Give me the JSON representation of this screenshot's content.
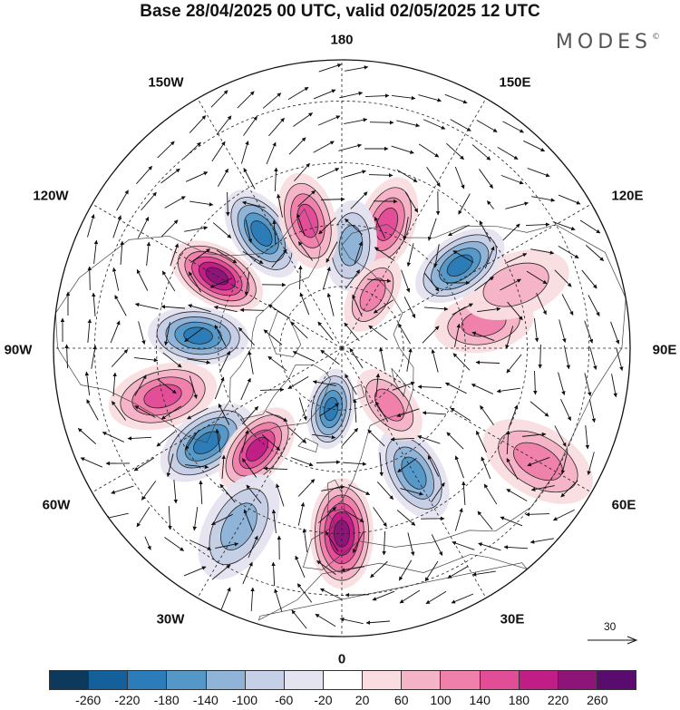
{
  "title": "Base 28/04/2025 00 UTC, valid 02/05/2025 12 UTC",
  "brand": "MODES",
  "brand_mark": "©",
  "longitude_labels": {
    "top": "180",
    "top_left": "150W",
    "top_right": "150E",
    "upper_left": "120W",
    "upper_right": "120E",
    "left": "90W",
    "right": "90E",
    "lower_left": "60W",
    "lower_right": "60E",
    "bottom_left": "30W",
    "bottom_right": "30E",
    "bottom": "0"
  },
  "reference_vector": {
    "label": "30"
  },
  "colorbar": {
    "tick_labels": [
      "-260",
      "-220",
      "-180",
      "-140",
      "-100",
      "-60",
      "-20",
      "20",
      "60",
      "100",
      "140",
      "180",
      "220",
      "260"
    ],
    "colors": [
      "#0d3a5c",
      "#13609b",
      "#2b7cb8",
      "#5598c7",
      "#8fb4d8",
      "#c5cfe5",
      "#e4e3f0",
      "#ffffff",
      "#f9dde1",
      "#f5b3c7",
      "#ef80aa",
      "#e24d97",
      "#c01d86",
      "#8d1578",
      "#5a0c6e"
    ]
  },
  "anomaly_centers": [
    {
      "lon": 160,
      "lat": 58,
      "sign": "positive",
      "magnitude": 150
    },
    {
      "lon": 175,
      "lat": 65,
      "sign": "negative",
      "magnitude": 120
    },
    {
      "lon": -145,
      "lat": 56,
      "sign": "negative",
      "magnitude": 200
    },
    {
      "lon": -165,
      "lat": 58,
      "sign": "positive",
      "magnitude": 150
    },
    {
      "lon": -120,
      "lat": 55,
      "sign": "positive",
      "magnitude": 230
    },
    {
      "lon": -95,
      "lat": 55,
      "sign": "negative",
      "magnitude": 180
    },
    {
      "lon": -75,
      "lat": 45,
      "sign": "positive",
      "magnitude": 150
    },
    {
      "lon": -55,
      "lat": 50,
      "sign": "negative",
      "magnitude": 180
    },
    {
      "lon": -40,
      "lat": 58,
      "sign": "positive",
      "magnitude": 180
    },
    {
      "lon": -30,
      "lat": 40,
      "sign": "negative",
      "magnitude": 120
    },
    {
      "lon": -10,
      "lat": 75,
      "sign": "negative",
      "magnitude": 180
    },
    {
      "lon": 0,
      "lat": 45,
      "sign": "positive",
      "magnitude": 230
    },
    {
      "lon": 30,
      "lat": 55,
      "sign": "negative",
      "magnitude": 150
    },
    {
      "lon": 40,
      "lat": 72,
      "sign": "positive",
      "magnitude": 120
    },
    {
      "lon": 60,
      "lat": 35,
      "sign": "positive",
      "magnitude": 100
    },
    {
      "lon": 100,
      "lat": 55,
      "sign": "positive",
      "magnitude": 120
    },
    {
      "lon": 110,
      "lat": 45,
      "sign": "positive",
      "magnitude": 60
    },
    {
      "lon": 125,
      "lat": 55,
      "sign": "negative",
      "magnitude": 200
    },
    {
      "lon": 150,
      "lat": 75,
      "sign": "positive",
      "magnitude": 100
    }
  ]
}
